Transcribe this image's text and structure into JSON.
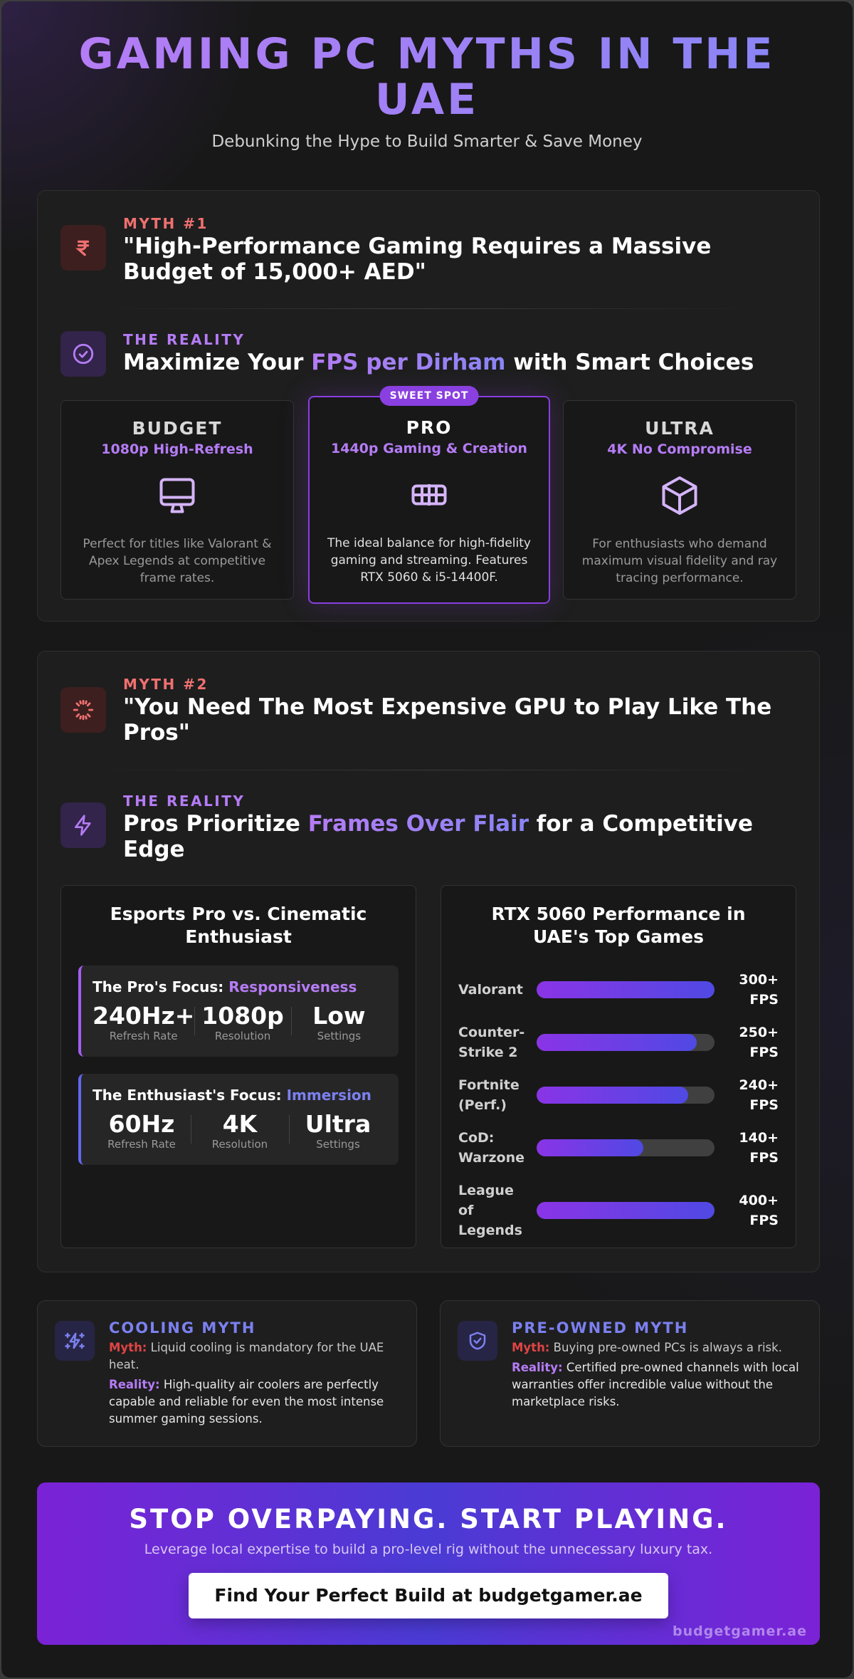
{
  "header": {
    "title": "GAMING PC MYTHS IN THE UAE",
    "subtitle": "Debunking the Hype to Build Smarter & Save Money"
  },
  "myth1": {
    "label": "MYTH #1",
    "icon": "rupee-icon",
    "quote": "\"High-Performance Gaming Requires a Massive Budget of 15,000+ AED\"",
    "reality_label": "THE REALITY",
    "reality_icon": "check-circle-icon",
    "reality_pre": "Maximize Your ",
    "reality_highlight": "FPS per Dirham",
    "reality_post": " with Smart Choices",
    "tiers": [
      {
        "name": "BUDGET",
        "sub": "1080p High-Refresh",
        "icon": "monitor-icon",
        "desc": "Perfect for titles like Valorant & Apex Legends at competitive frame rates."
      },
      {
        "name": "PRO",
        "sub": "1440p Gaming & Creation",
        "icon": "gpu-icon",
        "badge": "SWEET SPOT",
        "desc": "The ideal balance for high-fidelity gaming and streaming. Features RTX 5060 & i5-14400F."
      },
      {
        "name": "ULTRA",
        "sub": "4K No Compromise",
        "icon": "cube-icon",
        "desc": "For enthusiasts who demand maximum visual fidelity and ray tracing performance."
      }
    ]
  },
  "myth2": {
    "label": "MYTH #2",
    "icon": "loader-icon",
    "quote": "\"You Need The Most Expensive GPU to Play Like The Pros\"",
    "reality_label": "THE REALITY",
    "reality_icon": "lightning-icon",
    "reality_pre": "Pros Prioritize ",
    "reality_highlight": "Frames Over Flair",
    "reality_post": " for a Competitive Edge",
    "compare": {
      "title": "Esports Pro vs. Cinematic Enthusiast",
      "pro": {
        "label": "The Pro's Focus: ",
        "accent": "Responsiveness",
        "stats": [
          {
            "value": "240Hz+",
            "label": "Refresh Rate"
          },
          {
            "value": "1080p",
            "label": "Resolution"
          },
          {
            "value": "Low",
            "label": "Settings"
          }
        ]
      },
      "enthusiast": {
        "label": "The Enthusiast's Focus: ",
        "accent": "Immersion",
        "stats": [
          {
            "value": "60Hz",
            "label": "Refresh Rate"
          },
          {
            "value": "4K",
            "label": "Resolution"
          },
          {
            "value": "Ultra",
            "label": "Settings"
          }
        ]
      }
    },
    "performance": {
      "title": "RTX 5060 Performance in UAE's Top Games",
      "games": [
        {
          "name": "Valorant",
          "value": "300+ FPS",
          "pct": 100
        },
        {
          "name": "Counter-Strike 2",
          "value": "250+ FPS",
          "pct": 90
        },
        {
          "name": "Fortnite (Perf.)",
          "value": "240+ FPS",
          "pct": 85
        },
        {
          "name": "CoD: Warzone",
          "value": "140+ FPS",
          "pct": 60
        },
        {
          "name": "League of Legends",
          "value": "400+ FPS",
          "pct": 100
        }
      ]
    }
  },
  "chart_data": {
    "type": "bar",
    "title": "RTX 5060 Performance in UAE's Top Games",
    "categories": [
      "Valorant",
      "Counter-Strike 2",
      "Fortnite (Perf.)",
      "CoD: Warzone",
      "League of Legends"
    ],
    "values": [
      300,
      250,
      240,
      140,
      400
    ],
    "value_labels": [
      "300+ FPS",
      "250+ FPS",
      "240+ FPS",
      "140+ FPS",
      "400+ FPS"
    ],
    "bar_fill_pct": [
      100,
      90,
      85,
      60,
      100
    ],
    "orientation": "horizontal",
    "xlabel": "",
    "ylabel": "FPS"
  },
  "cooling": {
    "icon": "sparkle-bolt-icon",
    "title": "COOLING MYTH",
    "myth_label": "Myth:",
    "myth_text": " Liquid cooling is mandatory for the UAE heat.",
    "reality_label": "Reality:",
    "reality_text": " High-quality air coolers are perfectly capable and reliable for even the most intense summer gaming sessions."
  },
  "preowned": {
    "icon": "shield-check-icon",
    "title": "PRE-OWNED MYTH",
    "myth_label": "Myth:",
    "myth_text": " Buying pre-owned PCs is always a risk.",
    "reality_label": "Reality:",
    "reality_text": " Certified pre-owned channels with local warranties offer incredible value without the marketplace risks."
  },
  "cta": {
    "title": "STOP OVERPAYING. START PLAYING.",
    "subtitle": "Leverage local expertise to build a pro-level rig without the unnecessary luxury tax.",
    "button": "Find Your Perfect Build at budgetgamer.ae",
    "watermark": "budgetgamer.ae"
  },
  "colors": {
    "accent_purple": "#b57cf5",
    "accent_indigo": "#7b80f0",
    "myth_red": "#f07070",
    "background": "#181818"
  }
}
